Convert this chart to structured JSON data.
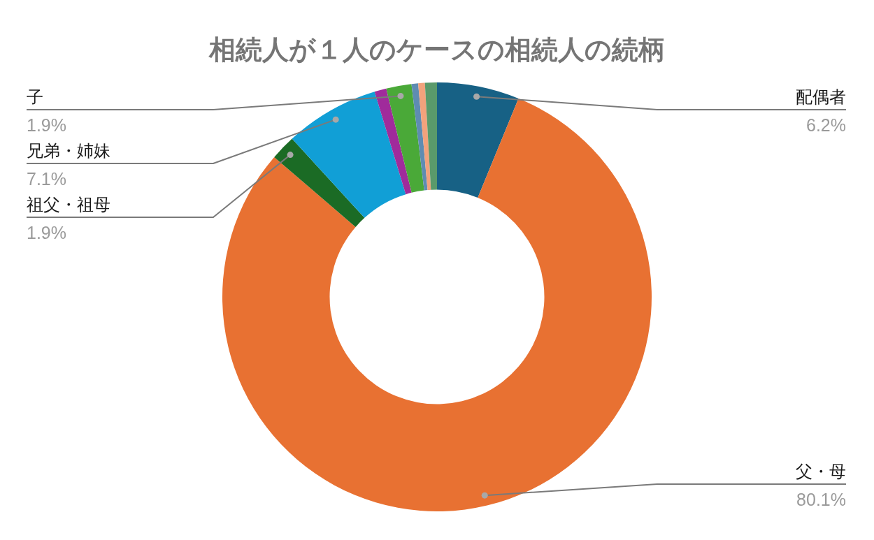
{
  "chart_data": {
    "type": "donut",
    "title": "相続人が１人のケースの相続人の続柄",
    "categories": [
      "配偶者",
      "父・母",
      "祖父・祖母",
      "兄弟・姉妹",
      null,
      "子",
      null,
      null,
      null
    ],
    "values": [
      6.2,
      80.1,
      1.9,
      7.1,
      0.9,
      1.9,
      0.5,
      0.5,
      0.9
    ],
    "colors": [
      "#176185",
      "#e87132",
      "#1b6b25",
      "#119fd6",
      "#a02b9b",
      "#4aa938",
      "#5e8cb2",
      "#f2a27c",
      "#5a9a6b"
    ],
    "value_labels": [
      "6.2%",
      "80.1%",
      "1.9%",
      "7.1%",
      null,
      "1.9%",
      null,
      null,
      null
    ]
  }
}
